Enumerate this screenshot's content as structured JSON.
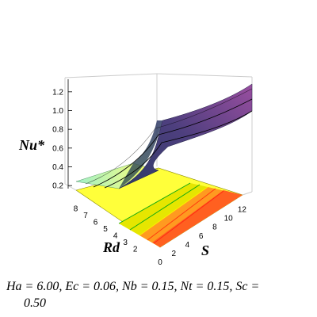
{
  "chart_data": {
    "type": "surface3d",
    "title": "",
    "zlabel": "Nu*",
    "xlabel": "Rd",
    "ylabel": "S",
    "z_ticks": [
      "0.2",
      "0.4",
      "0.6",
      "0.8",
      "1.0",
      "1.2"
    ],
    "rd_ticks": [
      "2",
      "3",
      "4",
      "5",
      "6",
      "7",
      "8"
    ],
    "s_ticks": [
      "0",
      "2",
      "4",
      "6",
      "8",
      "10",
      "12"
    ],
    "rd_range": [
      1,
      8.5
    ],
    "s_range": [
      0,
      13
    ],
    "z_range": [
      0.1,
      1.3
    ],
    "surface_colors": [
      "#9ef0c0",
      "#ffff4a",
      "#3d3a6e",
      "#8d4a97"
    ],
    "floor_colors": [
      "#ffff40",
      "#c8c800",
      "#ff9a20",
      "#ff5020"
    ]
  },
  "caption": {
    "line1": "Ha = 6.00, Ec = 0.06, Nb = 0.15, Nt = 0.15, Sc =",
    "line2": "0.50"
  }
}
